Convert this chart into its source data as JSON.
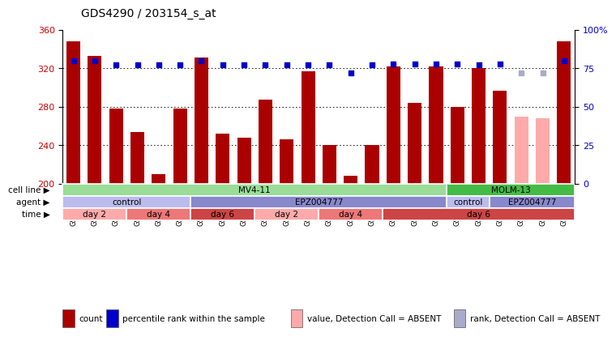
{
  "title": "GDS4290 / 203154_s_at",
  "samples": [
    "GSM739151",
    "GSM739152",
    "GSM739153",
    "GSM739157",
    "GSM739158",
    "GSM739159",
    "GSM739163",
    "GSM739164",
    "GSM739165",
    "GSM739148",
    "GSM739149",
    "GSM739150",
    "GSM739154",
    "GSM739155",
    "GSM739156",
    "GSM739160",
    "GSM739161",
    "GSM739162",
    "GSM739169",
    "GSM739170",
    "GSM739171",
    "GSM739166",
    "GSM739167",
    "GSM739168"
  ],
  "counts": [
    348,
    333,
    278,
    254,
    210,
    278,
    331,
    252,
    248,
    287,
    246,
    317,
    240,
    208,
    240,
    322,
    284,
    322,
    280,
    320,
    297,
    270,
    268,
    348
  ],
  "absent": [
    false,
    false,
    false,
    false,
    false,
    false,
    false,
    false,
    false,
    false,
    false,
    false,
    false,
    false,
    false,
    false,
    false,
    false,
    false,
    false,
    false,
    true,
    true,
    false
  ],
  "percentile": [
    80,
    80,
    77,
    77,
    77,
    77,
    80,
    77,
    77,
    77,
    77,
    77,
    77,
    72,
    77,
    78,
    78,
    78,
    78,
    77,
    78,
    72,
    72,
    80
  ],
  "absent_rank": [
    false,
    false,
    false,
    false,
    false,
    false,
    false,
    false,
    false,
    false,
    false,
    false,
    false,
    false,
    false,
    false,
    false,
    false,
    false,
    false,
    false,
    true,
    true,
    false
  ],
  "bar_color_present": "#aa0000",
  "bar_color_absent": "#ffaaaa",
  "dot_color_present": "#0000cc",
  "dot_color_absent": "#aaaacc",
  "ylim_left": [
    200,
    360
  ],
  "ylim_right": [
    0,
    100
  ],
  "yticks_left": [
    200,
    240,
    280,
    320,
    360
  ],
  "yticks_right": [
    0,
    25,
    50,
    75,
    100
  ],
  "ytick_labels_right": [
    "0",
    "25",
    "50",
    "75",
    "100%"
  ],
  "cell_line_groups": [
    {
      "label": "MV4-11",
      "start": 0,
      "end": 18,
      "color": "#99dd99"
    },
    {
      "label": "MOLM-13",
      "start": 18,
      "end": 24,
      "color": "#44bb44"
    }
  ],
  "agent_groups": [
    {
      "label": "control",
      "start": 0,
      "end": 6,
      "color": "#bbbbee"
    },
    {
      "label": "EPZ004777",
      "start": 6,
      "end": 18,
      "color": "#8888cc"
    },
    {
      "label": "control",
      "start": 18,
      "end": 20,
      "color": "#bbbbee"
    },
    {
      "label": "EPZ004777",
      "start": 20,
      "end": 24,
      "color": "#8888cc"
    }
  ],
  "time_groups": [
    {
      "label": "day 2",
      "start": 0,
      "end": 3,
      "color": "#ffaaaa"
    },
    {
      "label": "day 4",
      "start": 3,
      "end": 6,
      "color": "#ee7777"
    },
    {
      "label": "day 6",
      "start": 6,
      "end": 9,
      "color": "#cc4444"
    },
    {
      "label": "day 2",
      "start": 9,
      "end": 12,
      "color": "#ffaaaa"
    },
    {
      "label": "day 4",
      "start": 12,
      "end": 15,
      "color": "#ee7777"
    },
    {
      "label": "day 6",
      "start": 15,
      "end": 24,
      "color": "#cc4444"
    }
  ],
  "row_labels": [
    "cell line",
    "agent",
    "time"
  ],
  "legend_items": [
    {
      "label": "count",
      "color": "#aa0000"
    },
    {
      "label": "percentile rank within the sample",
      "color": "#0000cc"
    },
    {
      "label": "value, Detection Call = ABSENT",
      "color": "#ffaaaa"
    },
    {
      "label": "rank, Detection Call = ABSENT",
      "color": "#aaaacc"
    }
  ],
  "background_color": "#ffffff",
  "left_tick_color": "#cc0000",
  "right_tick_color": "#0000cc",
  "title_fontsize": 10,
  "tick_fontsize": 8,
  "bar_label_fontsize": 6,
  "annot_fontsize": 7.5
}
